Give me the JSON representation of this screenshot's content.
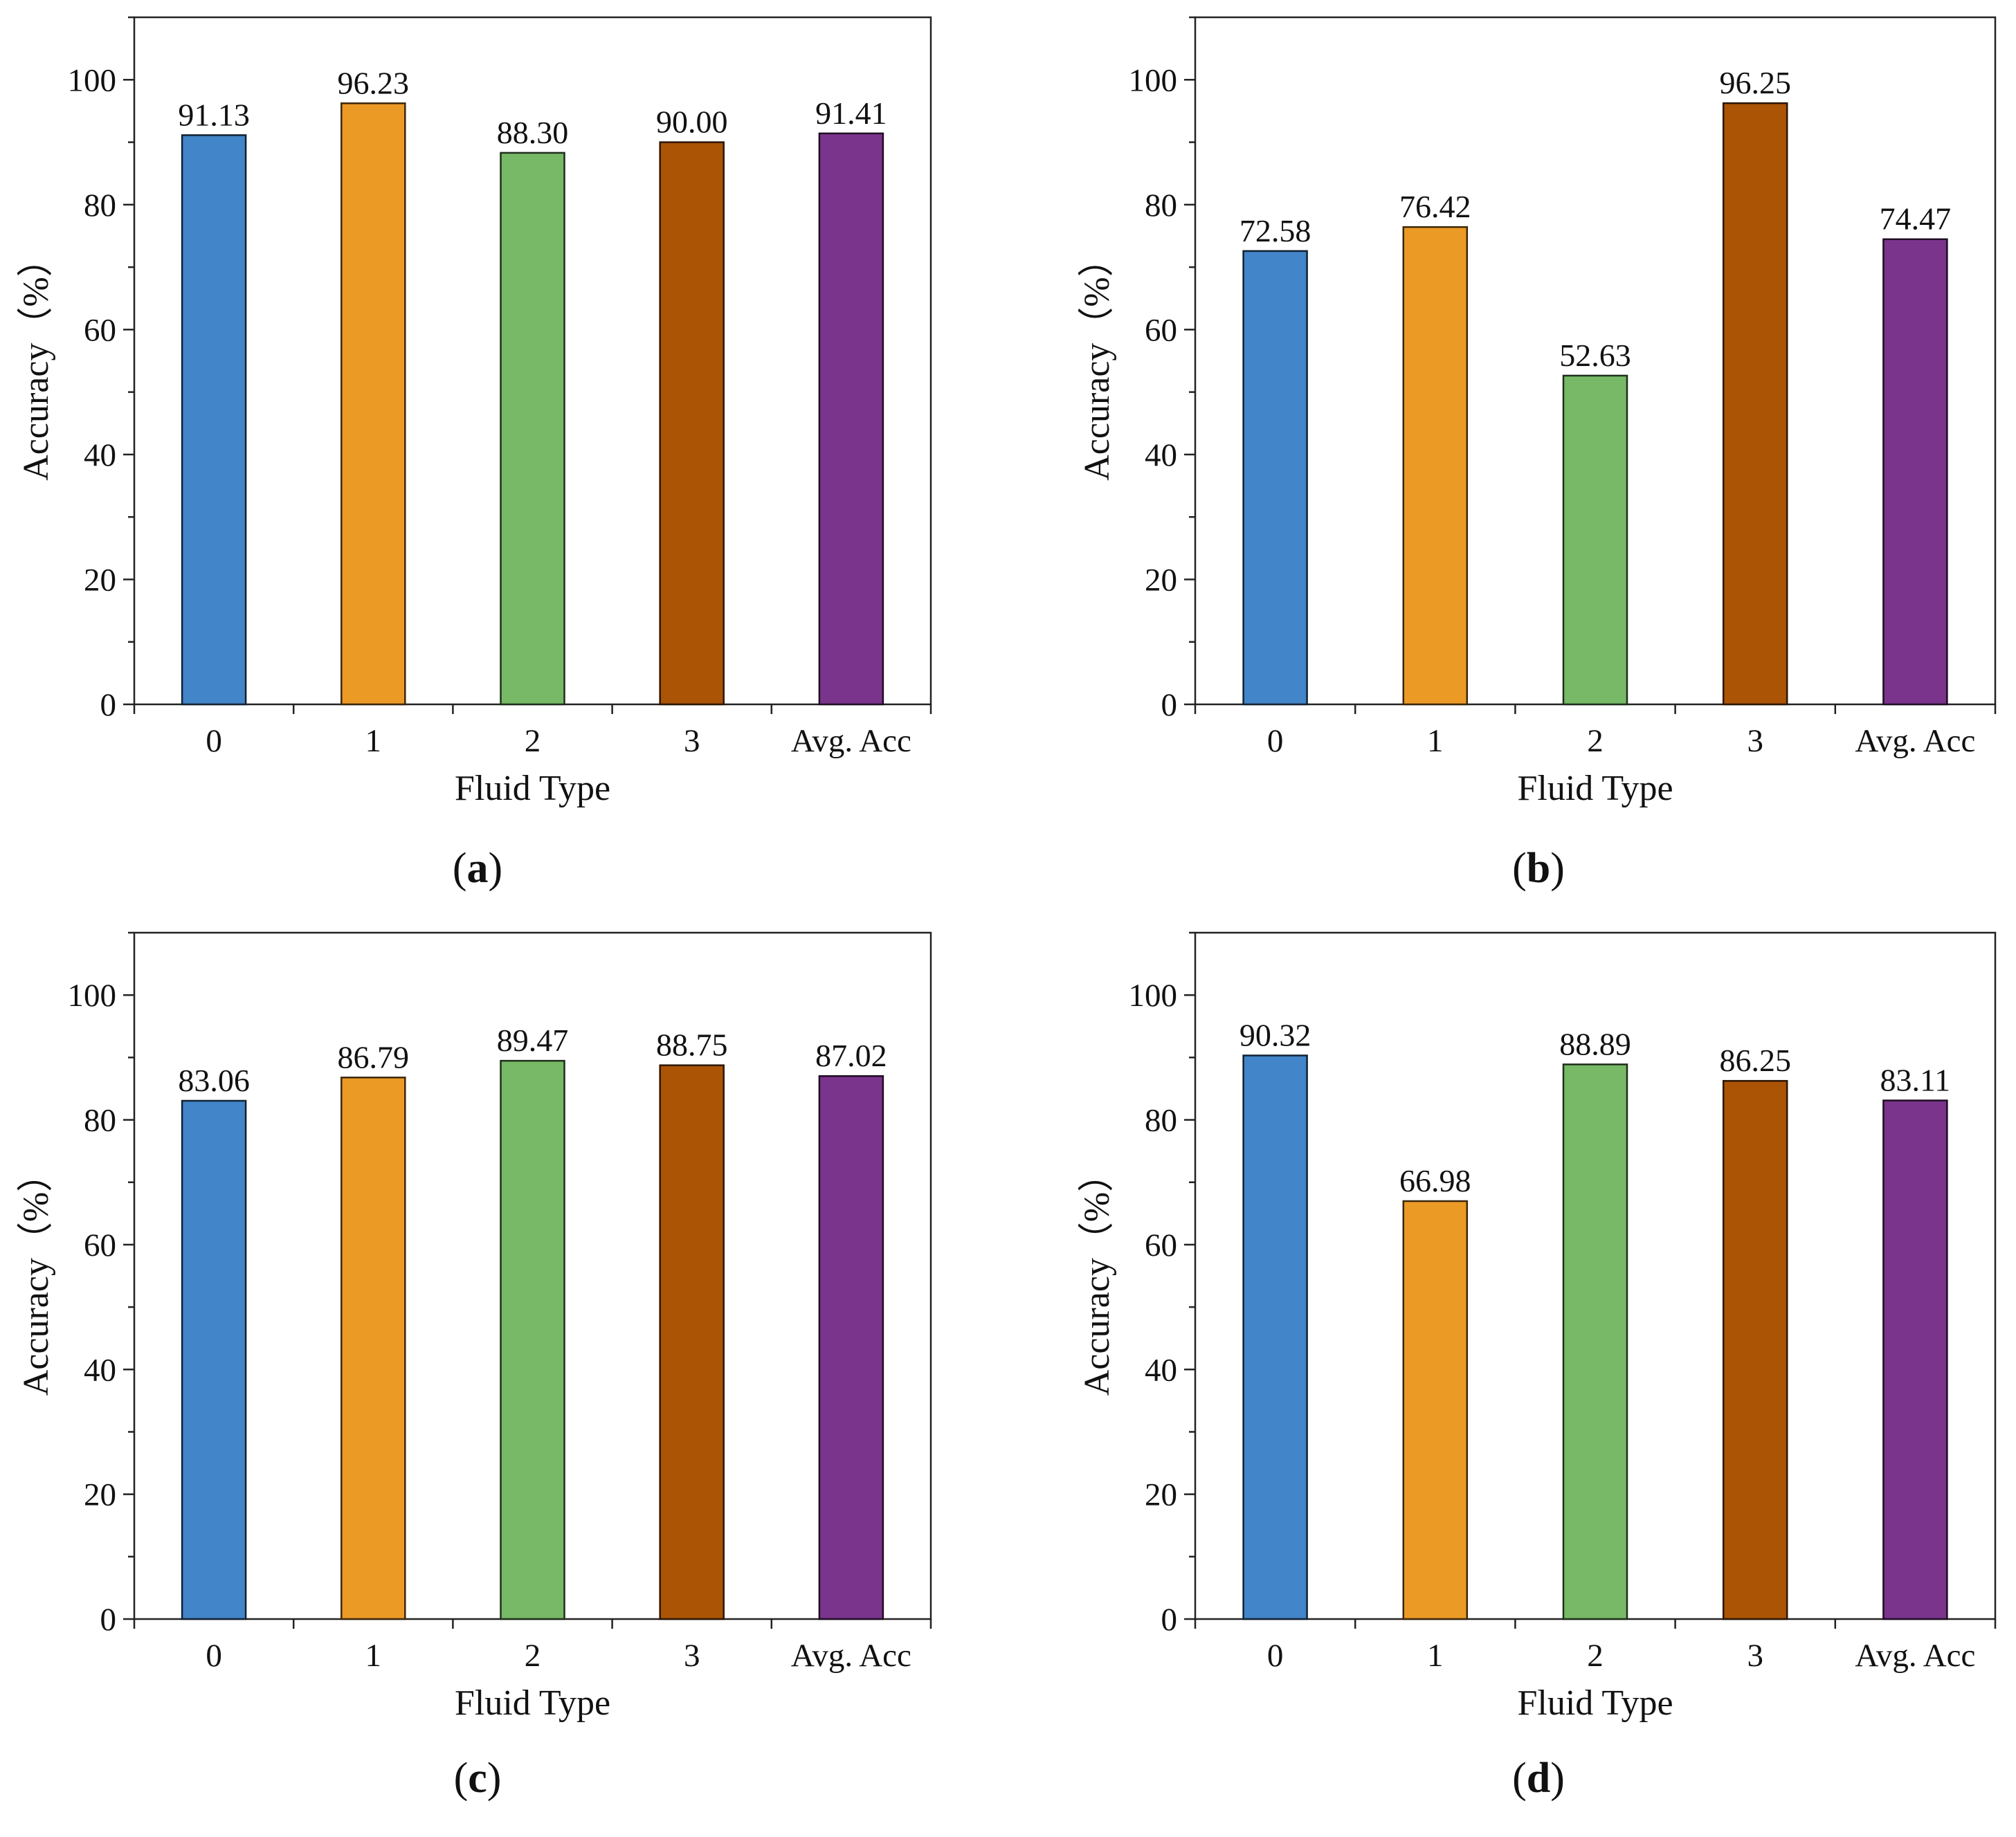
{
  "chart_data": [
    {
      "type": "bar",
      "panel": "a",
      "categories": [
        "0",
        "1",
        "2",
        "3",
        "Avg. Acc"
      ],
      "values": [
        91.13,
        96.23,
        88.3,
        90.0,
        91.41
      ],
      "labels": [
        "91.13",
        "96.23",
        "88.30",
        "90.00",
        "91.41"
      ],
      "xlabel": "Fluid Type",
      "ylabel": "Accuracy（%）",
      "ylim": [
        0,
        110
      ],
      "yticks": [
        "0",
        "20",
        "40",
        "60",
        "80",
        "100"
      ],
      "caption": {
        "open": "(",
        "letter": "a",
        "close": ")"
      }
    },
    {
      "type": "bar",
      "panel": "b",
      "categories": [
        "0",
        "1",
        "2",
        "3",
        "Avg. Acc"
      ],
      "values": [
        72.58,
        76.42,
        52.63,
        96.25,
        74.47
      ],
      "labels": [
        "72.58",
        "76.42",
        "52.63",
        "96.25",
        "74.47"
      ],
      "xlabel": "Fluid Type",
      "ylabel": "Accuracy（%）",
      "ylim": [
        0,
        110
      ],
      "yticks": [
        "0",
        "20",
        "40",
        "60",
        "80",
        "100"
      ],
      "caption": {
        "open": "(",
        "letter": "b",
        "close": ")"
      }
    },
    {
      "type": "bar",
      "panel": "c",
      "categories": [
        "0",
        "1",
        "2",
        "3",
        "Avg. Acc"
      ],
      "values": [
        83.06,
        86.79,
        89.47,
        88.75,
        87.02
      ],
      "labels": [
        "83.06",
        "86.79",
        "89.47",
        "88.75",
        "87.02"
      ],
      "xlabel": "Fluid Type",
      "ylabel": "Accuracy（%）",
      "ylim": [
        0,
        110
      ],
      "yticks": [
        "0",
        "20",
        "40",
        "60",
        "80",
        "100"
      ],
      "caption": {
        "open": "(",
        "letter": "c",
        "close": ")"
      }
    },
    {
      "type": "bar",
      "panel": "d",
      "categories": [
        "0",
        "1",
        "2",
        "3",
        "Avg. Acc"
      ],
      "values": [
        90.32,
        66.98,
        88.89,
        86.25,
        83.11
      ],
      "labels": [
        "90.32",
        "66.98",
        "88.89",
        "86.25",
        "83.11"
      ],
      "xlabel": "Fluid Type",
      "ylabel": "Accuracy（%）",
      "ylim": [
        0,
        110
      ],
      "yticks": [
        "0",
        "20",
        "40",
        "60",
        "80",
        "100"
      ],
      "caption": {
        "open": "(",
        "letter": "d",
        "close": ")"
      }
    }
  ],
  "bar_colors": [
    "#4285c8",
    "#ec9a26",
    "#77b966",
    "#ab5406",
    "#7a348c"
  ]
}
